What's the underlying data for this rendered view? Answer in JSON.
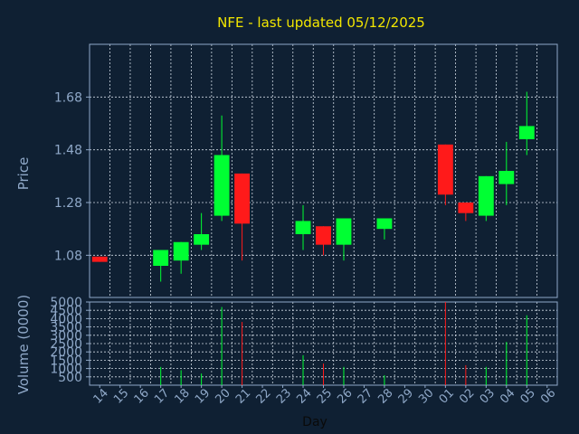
{
  "title": "NFE - last updated 05/12/2025",
  "colors": {
    "background": "#0f2033",
    "up": "#00ff33",
    "down": "#ff1a1a",
    "title": "#f2e600",
    "axis_text": "#8fa8c8"
  },
  "chart_data": [
    {
      "type": "candlestick",
      "ylabel": "Price",
      "yticks": [
        "1.08",
        "1.28",
        "1.48",
        "1.68"
      ],
      "ylim": [
        0.92,
        1.88
      ],
      "grid": true,
      "candles": [
        {
          "x": "14",
          "open": 1.075,
          "close": 1.055,
          "high": 1.075,
          "low": 1.055
        },
        {
          "x": "17",
          "open": 1.04,
          "close": 1.1,
          "high": 1.1,
          "low": 0.98
        },
        {
          "x": "18",
          "open": 1.06,
          "close": 1.13,
          "high": 1.13,
          "low": 1.01
        },
        {
          "x": "19",
          "open": 1.12,
          "close": 1.16,
          "high": 1.24,
          "low": 1.1
        },
        {
          "x": "20",
          "open": 1.23,
          "close": 1.46,
          "high": 1.61,
          "low": 1.21
        },
        {
          "x": "21",
          "open": 1.39,
          "close": 1.2,
          "high": 1.39,
          "low": 1.06
        },
        {
          "x": "24",
          "open": 1.16,
          "close": 1.21,
          "high": 1.27,
          "low": 1.1
        },
        {
          "x": "25",
          "open": 1.19,
          "close": 1.12,
          "high": 1.19,
          "low": 1.08
        },
        {
          "x": "26",
          "open": 1.12,
          "close": 1.22,
          "high": 1.22,
          "low": 1.06
        },
        {
          "x": "28",
          "open": 1.18,
          "close": 1.22,
          "high": 1.22,
          "low": 1.14
        },
        {
          "x": "01",
          "open": 1.5,
          "close": 1.31,
          "high": 1.5,
          "low": 1.27
        },
        {
          "x": "02",
          "open": 1.28,
          "close": 1.24,
          "high": 1.28,
          "low": 1.21
        },
        {
          "x": "03",
          "open": 1.23,
          "close": 1.38,
          "high": 1.38,
          "low": 1.21
        },
        {
          "x": "04",
          "open": 1.35,
          "close": 1.4,
          "high": 1.51,
          "low": 1.27
        },
        {
          "x": "05",
          "open": 1.52,
          "close": 1.57,
          "high": 1.7,
          "low": 1.46
        }
      ]
    },
    {
      "type": "bar",
      "ylabel": "Volume (0000)",
      "xlabel": "Day",
      "yticks": [
        "500",
        "1000",
        "1500",
        "2000",
        "2500",
        "3000",
        "3500",
        "4000",
        "4500",
        "5000"
      ],
      "ylim": [
        0,
        5000
      ],
      "grid": true,
      "categories": [
        "14",
        "15",
        "16",
        "17",
        "18",
        "19",
        "20",
        "21",
        "22",
        "23",
        "24",
        "25",
        "26",
        "27",
        "28",
        "29",
        "30",
        "01",
        "02",
        "03",
        "04",
        "05",
        "06"
      ],
      "values": [
        {
          "x": "17",
          "value": 1100,
          "direction": "up"
        },
        {
          "x": "18",
          "value": 900,
          "direction": "up"
        },
        {
          "x": "19",
          "value": 700,
          "direction": "up"
        },
        {
          "x": "20",
          "value": 4700,
          "direction": "up"
        },
        {
          "x": "21",
          "value": 3800,
          "direction": "down"
        },
        {
          "x": "24",
          "value": 1800,
          "direction": "up"
        },
        {
          "x": "25",
          "value": 1300,
          "direction": "down"
        },
        {
          "x": "26",
          "value": 1100,
          "direction": "up"
        },
        {
          "x": "28",
          "value": 600,
          "direction": "up"
        },
        {
          "x": "01",
          "value": 5000,
          "direction": "down"
        },
        {
          "x": "02",
          "value": 1200,
          "direction": "down"
        },
        {
          "x": "03",
          "value": 1100,
          "direction": "up"
        },
        {
          "x": "04",
          "value": 2600,
          "direction": "up"
        },
        {
          "x": "05",
          "value": 4200,
          "direction": "up"
        }
      ]
    }
  ]
}
